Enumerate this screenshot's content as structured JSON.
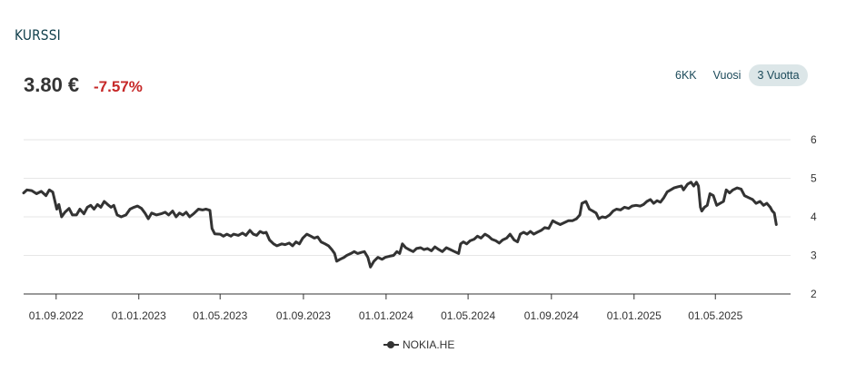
{
  "header": {
    "title": "KURSSI",
    "price": "3.80 €",
    "change": "-7.57%"
  },
  "range_tabs": [
    {
      "label": "6KK",
      "active": false
    },
    {
      "label": "Vuosi",
      "active": false
    },
    {
      "label": "3 Vuotta",
      "active": true
    }
  ],
  "colors": {
    "line": "#333333",
    "negative": "#c62828",
    "title": "#0f3e4a",
    "active_tab_bg": "#dce6e8",
    "grid": "#e6e6e6"
  },
  "chart_data": {
    "type": "line",
    "x_type": "date",
    "x_ticks": [
      "01.09.2022",
      "01.01.2023",
      "01.05.2023",
      "01.09.2023",
      "01.01.2024",
      "01.05.2024",
      "01.09.2024",
      "01.01.2025",
      "01.05.2025"
    ],
    "y_ticks": [
      2,
      3,
      4,
      5,
      6
    ],
    "ylim": [
      2,
      6
    ],
    "xlim": [
      "2022-07-15",
      "2025-08-20"
    ],
    "y_axis_position": "right",
    "grid": true,
    "legend_position": "bottom-center",
    "series": [
      {
        "name": "NOKIA.HE",
        "points": [
          [
            "2022-07-15",
            4.62
          ],
          [
            "2022-07-20",
            4.7
          ],
          [
            "2022-07-27",
            4.68
          ],
          [
            "2022-08-03",
            4.6
          ],
          [
            "2022-08-10",
            4.66
          ],
          [
            "2022-08-17",
            4.55
          ],
          [
            "2022-08-22",
            4.7
          ],
          [
            "2022-08-27",
            4.64
          ],
          [
            "2022-09-02",
            4.2
          ],
          [
            "2022-09-05",
            4.32
          ],
          [
            "2022-09-09",
            4.0
          ],
          [
            "2022-09-14",
            4.12
          ],
          [
            "2022-09-20",
            4.22
          ],
          [
            "2022-09-25",
            4.05
          ],
          [
            "2022-10-01",
            4.05
          ],
          [
            "2022-10-06",
            4.2
          ],
          [
            "2022-10-12",
            4.08
          ],
          [
            "2022-10-17",
            4.25
          ],
          [
            "2022-10-22",
            4.3
          ],
          [
            "2022-10-27",
            4.2
          ],
          [
            "2022-11-01",
            4.32
          ],
          [
            "2022-11-06",
            4.25
          ],
          [
            "2022-11-11",
            4.4
          ],
          [
            "2022-11-16",
            4.32
          ],
          [
            "2022-11-21",
            4.25
          ],
          [
            "2022-11-25",
            4.3
          ],
          [
            "2022-11-30",
            4.05
          ],
          [
            "2022-12-06",
            4.0
          ],
          [
            "2022-12-13",
            4.05
          ],
          [
            "2022-12-19",
            4.2
          ],
          [
            "2022-12-25",
            4.25
          ],
          [
            "2022-12-30",
            4.28
          ],
          [
            "2023-01-05",
            4.22
          ],
          [
            "2023-01-10",
            4.1
          ],
          [
            "2023-01-15",
            3.95
          ],
          [
            "2023-01-20",
            4.1
          ],
          [
            "2023-01-27",
            4.05
          ],
          [
            "2023-02-03",
            4.08
          ],
          [
            "2023-02-09",
            4.12
          ],
          [
            "2023-02-14",
            4.05
          ],
          [
            "2023-02-20",
            4.15
          ],
          [
            "2023-02-25",
            4.0
          ],
          [
            "2023-03-02",
            4.1
          ],
          [
            "2023-03-07",
            4.05
          ],
          [
            "2023-03-12",
            4.12
          ],
          [
            "2023-03-17",
            4.0
          ],
          [
            "2023-03-23",
            4.08
          ],
          [
            "2023-03-30",
            4.2
          ],
          [
            "2023-04-05",
            4.18
          ],
          [
            "2023-04-10",
            4.2
          ],
          [
            "2023-04-16",
            4.17
          ],
          [
            "2023-04-19",
            3.7
          ],
          [
            "2023-04-23",
            3.56
          ],
          [
            "2023-05-01",
            3.55
          ],
          [
            "2023-05-06",
            3.5
          ],
          [
            "2023-05-11",
            3.55
          ],
          [
            "2023-05-17",
            3.5
          ],
          [
            "2023-05-21",
            3.55
          ],
          [
            "2023-05-28",
            3.52
          ],
          [
            "2023-06-03",
            3.58
          ],
          [
            "2023-06-08",
            3.52
          ],
          [
            "2023-06-14",
            3.65
          ],
          [
            "2023-06-19",
            3.55
          ],
          [
            "2023-06-24",
            3.52
          ],
          [
            "2023-06-29",
            3.62
          ],
          [
            "2023-07-04",
            3.58
          ],
          [
            "2023-07-08",
            3.6
          ],
          [
            "2023-07-13",
            3.4
          ],
          [
            "2023-07-19",
            3.3
          ],
          [
            "2023-07-24",
            3.25
          ],
          [
            "2023-07-31",
            3.3
          ],
          [
            "2023-08-05",
            3.28
          ],
          [
            "2023-08-11",
            3.32
          ],
          [
            "2023-08-16",
            3.25
          ],
          [
            "2023-08-21",
            3.35
          ],
          [
            "2023-08-26",
            3.3
          ],
          [
            "2023-08-31",
            3.45
          ],
          [
            "2023-09-06",
            3.55
          ],
          [
            "2023-09-12",
            3.5
          ],
          [
            "2023-09-17",
            3.45
          ],
          [
            "2023-09-22",
            3.48
          ],
          [
            "2023-09-27",
            3.35
          ],
          [
            "2023-10-03",
            3.3
          ],
          [
            "2023-10-08",
            3.25
          ],
          [
            "2023-10-13",
            3.15
          ],
          [
            "2023-10-17",
            3.05
          ],
          [
            "2023-10-20",
            2.85
          ],
          [
            "2023-10-25",
            2.9
          ],
          [
            "2023-10-31",
            2.95
          ],
          [
            "2023-11-04",
            3.0
          ],
          [
            "2023-11-10",
            3.05
          ],
          [
            "2023-11-15",
            3.1
          ],
          [
            "2023-11-20",
            3.05
          ],
          [
            "2023-11-26",
            3.08
          ],
          [
            "2023-11-30",
            3.1
          ],
          [
            "2023-12-05",
            2.95
          ],
          [
            "2023-12-09",
            2.7
          ],
          [
            "2023-12-14",
            2.85
          ],
          [
            "2023-12-20",
            2.95
          ],
          [
            "2023-12-26",
            2.9
          ],
          [
            "2023-12-31",
            2.95
          ],
          [
            "2024-01-06",
            2.98
          ],
          [
            "2024-01-12",
            3.0
          ],
          [
            "2024-01-17",
            3.1
          ],
          [
            "2024-01-21",
            3.05
          ],
          [
            "2024-01-25",
            3.3
          ],
          [
            "2024-01-30",
            3.2
          ],
          [
            "2024-02-04",
            3.15
          ],
          [
            "2024-02-10",
            3.1
          ],
          [
            "2024-02-15",
            3.18
          ],
          [
            "2024-02-21",
            3.2
          ],
          [
            "2024-02-26",
            3.15
          ],
          [
            "2024-03-02",
            3.18
          ],
          [
            "2024-03-08",
            3.12
          ],
          [
            "2024-03-13",
            3.22
          ],
          [
            "2024-03-19",
            3.15
          ],
          [
            "2024-03-24",
            3.1
          ],
          [
            "2024-03-30",
            3.2
          ],
          [
            "2024-04-05",
            3.15
          ],
          [
            "2024-04-11",
            3.1
          ],
          [
            "2024-04-17",
            3.05
          ],
          [
            "2024-04-20",
            3.3
          ],
          [
            "2024-04-24",
            3.35
          ],
          [
            "2024-04-29",
            3.3
          ],
          [
            "2024-05-04",
            3.38
          ],
          [
            "2024-05-10",
            3.42
          ],
          [
            "2024-05-15",
            3.5
          ],
          [
            "2024-05-20",
            3.45
          ],
          [
            "2024-05-26",
            3.55
          ],
          [
            "2024-05-31",
            3.5
          ],
          [
            "2024-06-05",
            3.42
          ],
          [
            "2024-06-11",
            3.38
          ],
          [
            "2024-06-16",
            3.32
          ],
          [
            "2024-06-21",
            3.4
          ],
          [
            "2024-06-27",
            3.45
          ],
          [
            "2024-07-02",
            3.55
          ],
          [
            "2024-07-08",
            3.4
          ],
          [
            "2024-07-13",
            3.35
          ],
          [
            "2024-07-17",
            3.55
          ],
          [
            "2024-07-22",
            3.6
          ],
          [
            "2024-07-27",
            3.55
          ],
          [
            "2024-08-01",
            3.62
          ],
          [
            "2024-08-06",
            3.55
          ],
          [
            "2024-08-11",
            3.6
          ],
          [
            "2024-08-17",
            3.65
          ],
          [
            "2024-08-22",
            3.72
          ],
          [
            "2024-08-28",
            3.7
          ],
          [
            "2024-09-03",
            3.9
          ],
          [
            "2024-09-08",
            3.85
          ],
          [
            "2024-09-14",
            3.8
          ],
          [
            "2024-09-20",
            3.85
          ],
          [
            "2024-09-26",
            3.9
          ],
          [
            "2024-10-02",
            3.9
          ],
          [
            "2024-10-08",
            3.95
          ],
          [
            "2024-10-13",
            4.05
          ],
          [
            "2024-10-16",
            4.35
          ],
          [
            "2024-10-22",
            4.4
          ],
          [
            "2024-10-27",
            4.2
          ],
          [
            "2024-11-01",
            4.15
          ],
          [
            "2024-11-06",
            4.1
          ],
          [
            "2024-11-10",
            3.95
          ],
          [
            "2024-11-15",
            4.0
          ],
          [
            "2024-11-20",
            3.98
          ],
          [
            "2024-11-26",
            4.05
          ],
          [
            "2024-12-01",
            4.15
          ],
          [
            "2024-12-06",
            4.2
          ],
          [
            "2024-12-12",
            4.18
          ],
          [
            "2024-12-18",
            4.25
          ],
          [
            "2024-12-24",
            4.22
          ],
          [
            "2024-12-29",
            4.28
          ],
          [
            "2025-01-04",
            4.3
          ],
          [
            "2025-01-10",
            4.28
          ],
          [
            "2025-01-15",
            4.32
          ],
          [
            "2025-01-20",
            4.4
          ],
          [
            "2025-01-25",
            4.45
          ],
          [
            "2025-01-30",
            4.35
          ],
          [
            "2025-02-04",
            4.42
          ],
          [
            "2025-02-09",
            4.38
          ],
          [
            "2025-02-14",
            4.5
          ],
          [
            "2025-02-19",
            4.65
          ],
          [
            "2025-02-24",
            4.7
          ],
          [
            "2025-03-01",
            4.75
          ],
          [
            "2025-03-07",
            4.78
          ],
          [
            "2025-03-12",
            4.8
          ],
          [
            "2025-03-15",
            4.7
          ],
          [
            "2025-03-21",
            4.85
          ],
          [
            "2025-03-26",
            4.9
          ],
          [
            "2025-03-30",
            4.8
          ],
          [
            "2025-04-03",
            4.9
          ],
          [
            "2025-04-06",
            4.8
          ],
          [
            "2025-04-09",
            4.25
          ],
          [
            "2025-04-11",
            4.15
          ],
          [
            "2025-04-15",
            4.25
          ],
          [
            "2025-04-19",
            4.3
          ],
          [
            "2025-04-23",
            4.6
          ],
          [
            "2025-04-28",
            4.55
          ],
          [
            "2025-05-03",
            4.3
          ],
          [
            "2025-05-08",
            4.35
          ],
          [
            "2025-05-13",
            4.4
          ],
          [
            "2025-05-17",
            4.7
          ],
          [
            "2025-05-22",
            4.62
          ],
          [
            "2025-05-27",
            4.7
          ],
          [
            "2025-06-02",
            4.75
          ],
          [
            "2025-06-08",
            4.72
          ],
          [
            "2025-06-13",
            4.55
          ],
          [
            "2025-06-19",
            4.5
          ],
          [
            "2025-06-25",
            4.45
          ],
          [
            "2025-06-30",
            4.35
          ],
          [
            "2025-07-06",
            4.4
          ],
          [
            "2025-07-11",
            4.3
          ],
          [
            "2025-07-16",
            4.35
          ],
          [
            "2025-07-21",
            4.25
          ],
          [
            "2025-07-24",
            4.15
          ],
          [
            "2025-07-27",
            4.1
          ],
          [
            "2025-07-30",
            3.8
          ]
        ]
      }
    ]
  }
}
